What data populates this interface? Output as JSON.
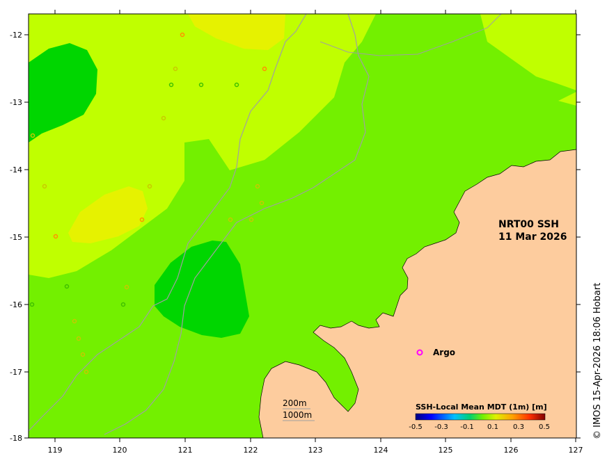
{
  "map": {
    "title_line1": "NRT00 SSH",
    "title_line2": "11 Mar 2026",
    "legend_argo_label": "Argo",
    "contour_label_200": "200m",
    "contour_label_1000": "1000m",
    "credit": "© IMOS 15-Apr-2026 18:06 Hobart"
  },
  "axes": {
    "x_ticks": [
      "119",
      "120",
      "121",
      "122",
      "123",
      "124",
      "125",
      "126",
      "127"
    ],
    "y_ticks": [
      "-12",
      "-13",
      "-14",
      "-15",
      "-16",
      "-17",
      "-18"
    ]
  },
  "colorbar": {
    "title": "SSH-Local Mean MDT (1m) [m]",
    "ticks": [
      "-0.5",
      "-0.3",
      "-0.1",
      "0.1",
      "0.3",
      "0.5"
    ],
    "range": [
      -0.5,
      0.5
    ]
  },
  "colors": {
    "land": "#fdcc9e",
    "sea_base": "#73f000",
    "sea_light": "#c0ff00",
    "sea_yellow": "#e6f200",
    "sea_dark": "#00d600",
    "contour": "#a0a0a0",
    "argo": "#ff00ff"
  }
}
